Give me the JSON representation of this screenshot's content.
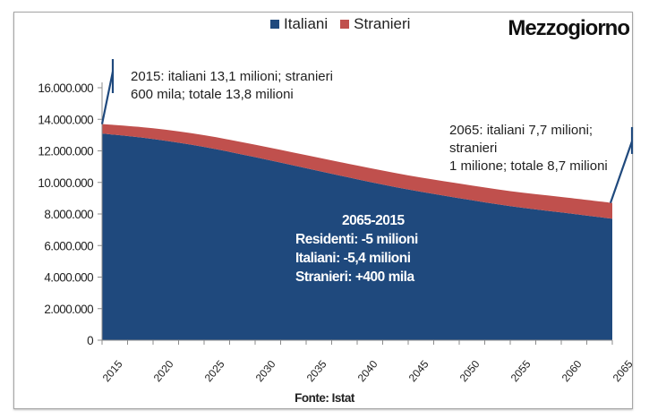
{
  "chart_data": {
    "type": "area",
    "stacked": true,
    "title": "Mezzogiorno",
    "xlabel": "",
    "ylabel": "",
    "source": "Fonte: Istat",
    "legend_position": "top-center",
    "grid": false,
    "x": [
      2015,
      2020,
      2025,
      2030,
      2035,
      2040,
      2045,
      2050,
      2055,
      2060,
      2065
    ],
    "x_ticks": [
      "2015",
      "2020",
      "2025",
      "2030",
      "2035",
      "2040",
      "2045",
      "2050",
      "2055",
      "2060",
      "2065"
    ],
    "y_ticks": [
      "0",
      "2.000.000",
      "4.000.000",
      "6.000.000",
      "8.000.000",
      "10.000.000",
      "12.000.000",
      "14.000.000",
      "16.000.000"
    ],
    "y_tick_values": [
      0,
      2000000,
      4000000,
      6000000,
      8000000,
      10000000,
      12000000,
      14000000,
      16000000
    ],
    "ylim": [
      0,
      16000000
    ],
    "xlim": [
      2015,
      2065
    ],
    "series": [
      {
        "name": "Italiani",
        "color": "#1f497d",
        "values": [
          13100000,
          12750000,
          12250000,
          11600000,
          10900000,
          10200000,
          9550000,
          9000000,
          8500000,
          8100000,
          7700000
        ]
      },
      {
        "name": "Stranieri",
        "color": "#c0504d",
        "values": [
          600000,
          680000,
          740000,
          790000,
          830000,
          870000,
          900000,
          930000,
          950000,
          980000,
          1000000
        ]
      }
    ],
    "annotations": [
      {
        "id": "start",
        "text_lines": [
          "2015: italiani 13,1 milioni; stranieri",
          "600 mila; totale 13,8 milioni"
        ],
        "x": 2015
      },
      {
        "id": "end",
        "text_lines": [
          "2065: italiani 7,7 milioni; stranieri",
          "1 milione; totale 8,7 milioni"
        ],
        "x": 2065
      }
    ],
    "summary": {
      "heading": "2065-2015",
      "lines": [
        "Residenti: -5 milioni",
        "Italiani: -5,4 milioni",
        "Stranieri: +400 mila"
      ]
    }
  },
  "colors": {
    "italiani": "#1f497d",
    "stranieri": "#c0504d",
    "callout_line": "#1f497d"
  }
}
